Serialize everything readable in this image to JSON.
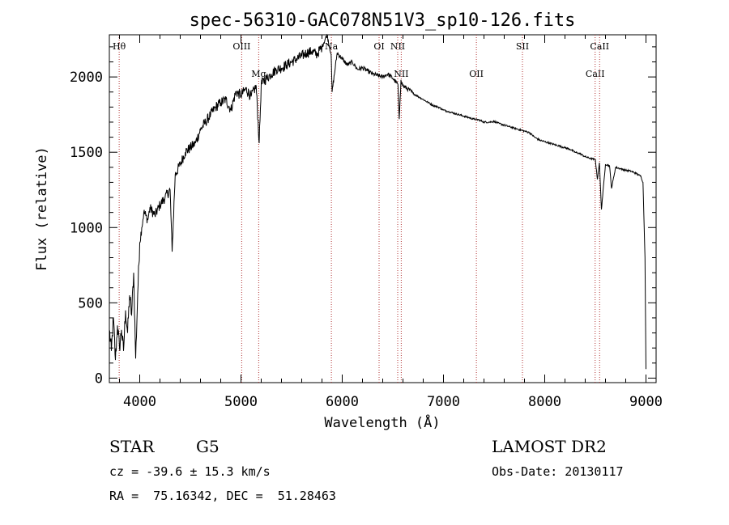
{
  "chart_data": {
    "type": "line",
    "title": "spec-56310-GAC078N51V3_sp10-126.fits",
    "xlabel": "Wavelength (Å)",
    "ylabel": "Flux (relative)",
    "xlim": [
      3700,
      9100
    ],
    "ylim": [
      -30,
      2280
    ],
    "x_ticks": [
      4000,
      5000,
      6000,
      7000,
      8000,
      9000
    ],
    "y_ticks": [
      0,
      500,
      1000,
      1500,
      2000
    ],
    "grid": false,
    "series": [
      {
        "x": [
          3700,
          3720,
          3740,
          3760,
          3780,
          3800,
          3820,
          3840,
          3860,
          3880,
          3900,
          3920,
          3940,
          3960,
          3980,
          4000,
          4020,
          4040,
          4060,
          4080,
          4100,
          4150,
          4200,
          4250,
          4300,
          4320,
          4350,
          4400,
          4450,
          4500,
          4550,
          4600,
          4650,
          4700,
          4750,
          4800,
          4850,
          4900,
          4950,
          5000,
          5050,
          5100,
          5150,
          5180,
          5200,
          5250,
          5300,
          5350,
          5400,
          5450,
          5500,
          5550,
          5600,
          5650,
          5700,
          5750,
          5800,
          5850,
          5890,
          5900,
          5950,
          6000,
          6050,
          6100,
          6150,
          6200,
          6250,
          6300,
          6350,
          6400,
          6450,
          6500,
          6550,
          6563,
          6580,
          6600,
          6650,
          6700,
          6750,
          6800,
          6850,
          6900,
          6950,
          7000,
          7050,
          7100,
          7150,
          7200,
          7250,
          7300,
          7350,
          7400,
          7450,
          7500,
          7550,
          7600,
          7650,
          7700,
          7750,
          7800,
          7850,
          7900,
          7950,
          8000,
          8050,
          8100,
          8150,
          8200,
          8250,
          8300,
          8350,
          8400,
          8450,
          8500,
          8520,
          8540,
          8560,
          8600,
          8640,
          8660,
          8700,
          8750,
          8800,
          8850,
          8900,
          8950,
          8970,
          8990,
          9000
        ],
        "y": [
          320,
          180,
          400,
          120,
          350,
          200,
          320,
          180,
          450,
          300,
          550,
          420,
          700,
          130,
          560,
          900,
          1000,
          1100,
          1080,
          1050,
          1130,
          1080,
          1150,
          1200,
          1250,
          840,
          1350,
          1420,
          1500,
          1530,
          1560,
          1650,
          1700,
          1750,
          1800,
          1830,
          1850,
          1780,
          1900,
          1880,
          1920,
          1870,
          1940,
          1560,
          1950,
          1990,
          2020,
          2050,
          2060,
          2080,
          2100,
          2120,
          2140,
          2160,
          2170,
          2150,
          2200,
          2280,
          2150,
          1900,
          2160,
          2120,
          2080,
          2100,
          2050,
          2060,
          2040,
          2020,
          2010,
          2000,
          2020,
          1990,
          1950,
          1720,
          1980,
          1940,
          1920,
          1890,
          1870,
          1850,
          1830,
          1810,
          1800,
          1780,
          1770,
          1760,
          1750,
          1740,
          1730,
          1720,
          1715,
          1700,
          1700,
          1705,
          1690,
          1680,
          1670,
          1660,
          1650,
          1640,
          1630,
          1600,
          1580,
          1570,
          1560,
          1550,
          1540,
          1530,
          1520,
          1500,
          1490,
          1470,
          1460,
          1450,
          1320,
          1430,
          1120,
          1420,
          1410,
          1260,
          1400,
          1390,
          1380,
          1375,
          1360,
          1340,
          1300,
          800,
          60
        ]
      }
    ],
    "lines": [
      {
        "name": "Hθ",
        "x": 3797,
        "row": "top"
      },
      {
        "name": "OIII",
        "x": 5007,
        "row": "top"
      },
      {
        "name": "Mg",
        "x": 5175,
        "row": "mid"
      },
      {
        "name": "Na",
        "x": 5893,
        "row": "top"
      },
      {
        "name": "OI",
        "x": 6364,
        "row": "top"
      },
      {
        "name": "NII",
        "x": 6548,
        "row": "top"
      },
      {
        "name": "NII",
        "x": 6583,
        "row": "mid"
      },
      {
        "name": "OII",
        "x": 7325,
        "row": "mid"
      },
      {
        "name": "SII",
        "x": 7780,
        "row": "top"
      },
      {
        "name": "CaII",
        "x": 8498,
        "row": "mid"
      },
      {
        "name": "CaII",
        "x": 8542,
        "row": "top"
      }
    ]
  },
  "info": {
    "class": "STAR",
    "subclass": "G5",
    "survey": "LAMOST DR2",
    "cz": "cz = -39.6 ± 15.3 km/s",
    "obsdate": "Obs-Date: 20130117",
    "radec": "RA =  75.16342, DEC =  51.28463"
  }
}
